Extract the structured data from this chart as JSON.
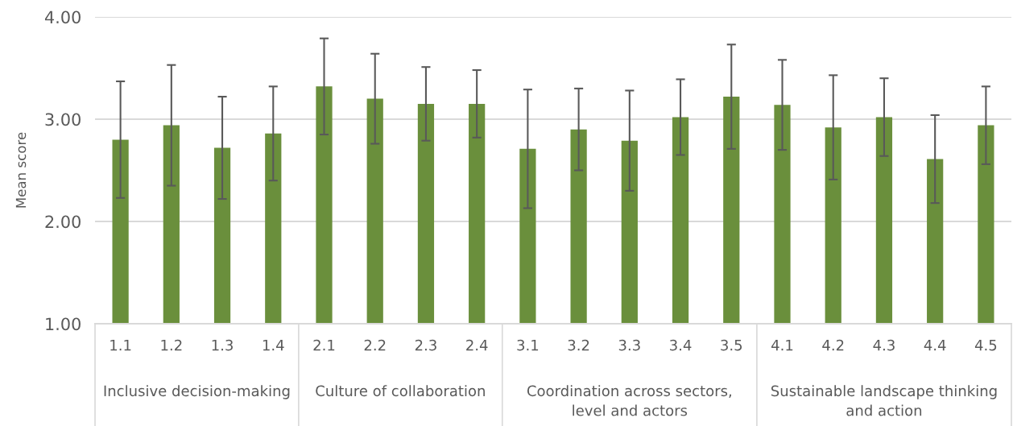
{
  "chart_data": {
    "type": "bar",
    "ylabel": "Mean score",
    "categories": [
      "1.1",
      "1.2",
      "1.3",
      "1.4",
      "2.1",
      "2.2",
      "2.3",
      "2.4",
      "3.1",
      "3.2",
      "3.3",
      "3.4",
      "3.5",
      "4.1",
      "4.2",
      "4.3",
      "4.4",
      "4.5"
    ],
    "values": [
      2.8,
      2.94,
      2.72,
      2.86,
      3.32,
      3.2,
      3.15,
      3.15,
      2.71,
      2.9,
      2.79,
      3.02,
      3.22,
      3.14,
      2.92,
      3.02,
      2.61,
      2.94
    ],
    "errors": [
      0.57,
      0.59,
      0.5,
      0.46,
      0.47,
      0.44,
      0.36,
      0.33,
      0.58,
      0.4,
      0.49,
      0.37,
      0.51,
      0.44,
      0.51,
      0.38,
      0.43,
      0.38
    ],
    "color": "#6a8f3c",
    "ylim": [
      1,
      4
    ],
    "yticks": [
      {
        "value": 1,
        "label": "1.00"
      },
      {
        "value": 2,
        "label": "2.00"
      },
      {
        "value": 3,
        "label": "3.00"
      },
      {
        "value": 4,
        "label": "4.00"
      }
    ],
    "grid": "y",
    "annotations": [
      "Inclusive decision-making",
      "Culture of collaboration",
      "Coordination across sectors,\nlevel and actors",
      "Sustainable landscape thinking\nand action"
    ]
  }
}
